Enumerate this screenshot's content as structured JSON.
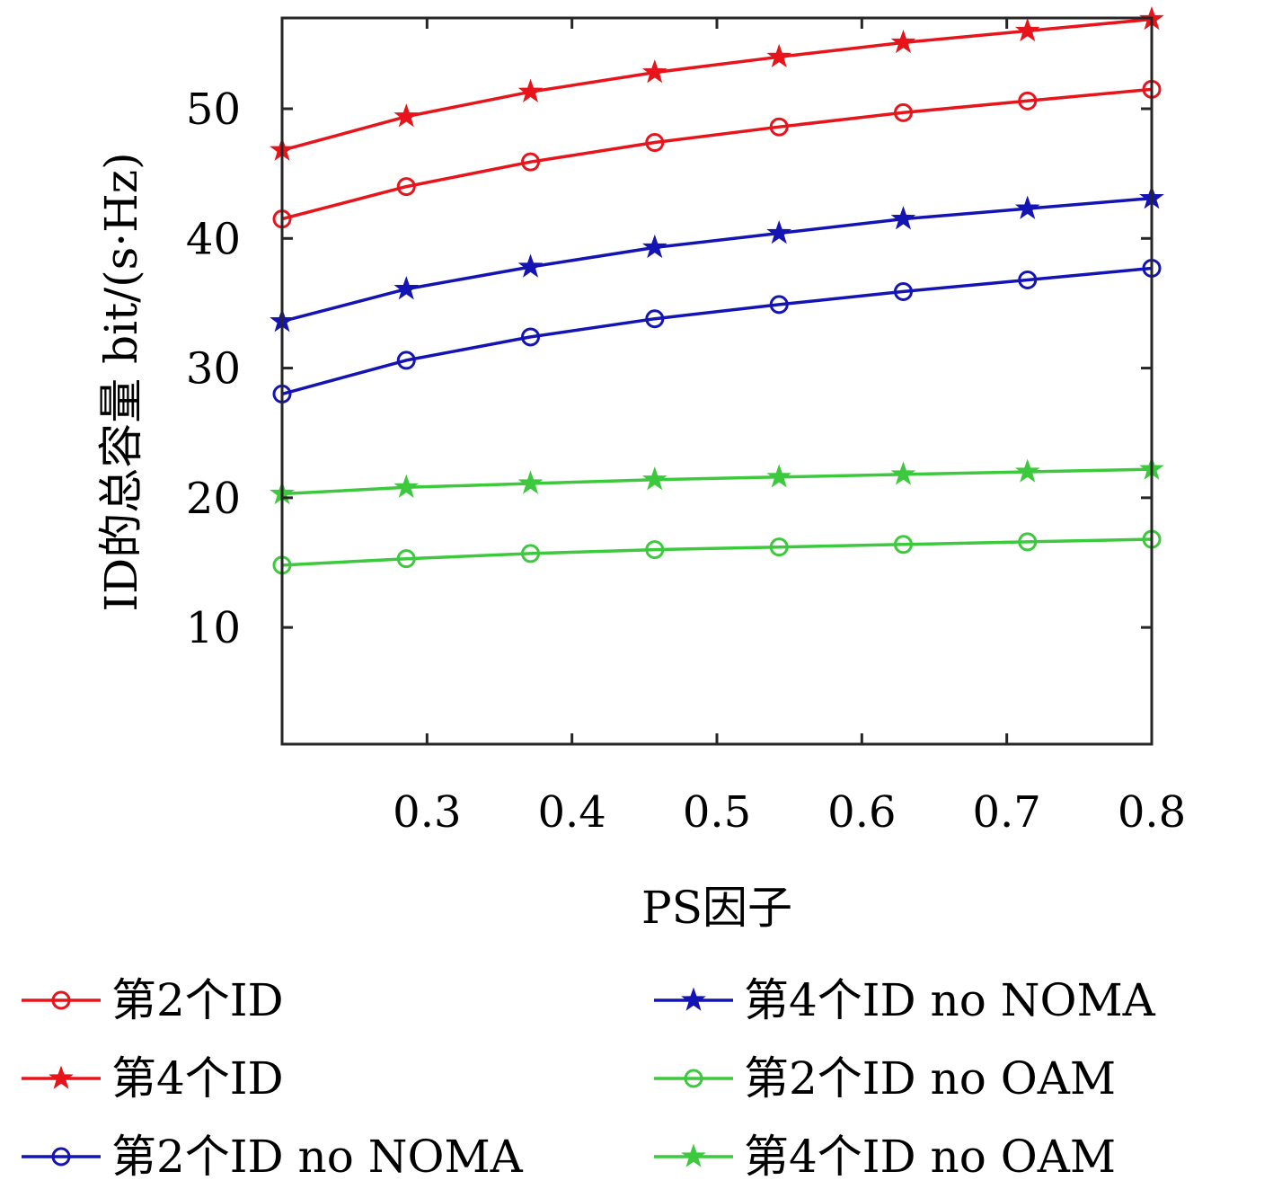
{
  "chart_data": {
    "type": "line",
    "xlabel": "PS因子",
    "ylabel": "ID的总容量 bit/(s·Hz)",
    "xlim": [
      0.2,
      0.8
    ],
    "ylim": [
      1,
      57
    ],
    "xticks": [
      0.3,
      0.4,
      0.5,
      0.6,
      0.7,
      0.8
    ],
    "yticks": [
      10,
      20,
      30,
      40,
      50
    ],
    "x": [
      0.2,
      0.2857,
      0.3714,
      0.4571,
      0.5429,
      0.6286,
      0.7143,
      0.8
    ],
    "grid": false,
    "legend_position": "bottom",
    "series": [
      {
        "name": "第2个ID",
        "color": "#e8141b",
        "marker": "circle",
        "values": [
          41.5,
          44.0,
          45.9,
          47.4,
          48.6,
          49.7,
          50.6,
          51.5
        ]
      },
      {
        "name": "第4个ID",
        "color": "#e8141b",
        "marker": "star",
        "values": [
          46.8,
          49.4,
          51.3,
          52.8,
          54.0,
          55.1,
          56.0,
          56.9
        ]
      },
      {
        "name": "第2个ID no NOMA",
        "color": "#1414b4",
        "marker": "circle",
        "values": [
          28.0,
          30.6,
          32.4,
          33.8,
          34.9,
          35.9,
          36.8,
          37.7
        ]
      },
      {
        "name": "第4个ID no NOMA",
        "color": "#1414b4",
        "marker": "star",
        "values": [
          33.6,
          36.1,
          37.8,
          39.3,
          40.4,
          41.5,
          42.3,
          43.1
        ]
      },
      {
        "name": "第2个ID no OAM",
        "color": "#3dc93d",
        "marker": "circle",
        "values": [
          14.8,
          15.3,
          15.7,
          16.0,
          16.2,
          16.4,
          16.6,
          16.8
        ]
      },
      {
        "name": "第4个ID no OAM",
        "color": "#3dc93d",
        "marker": "star",
        "values": [
          20.3,
          20.8,
          21.1,
          21.4,
          21.6,
          21.8,
          22.0,
          22.2
        ]
      }
    ]
  }
}
